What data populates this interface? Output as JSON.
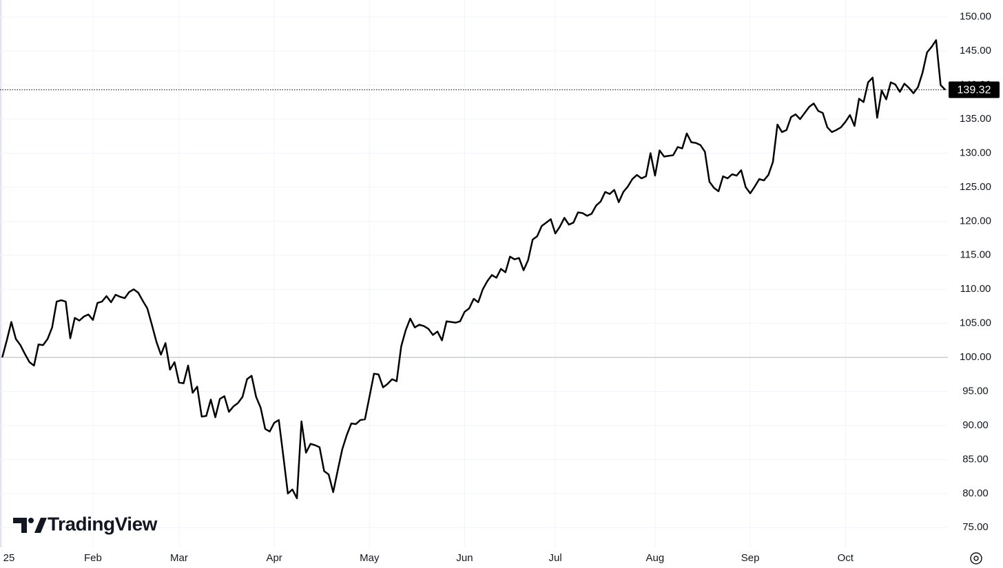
{
  "chart_data": {
    "type": "line",
    "watermark": "TradingView",
    "color": "#000000",
    "baseline": 100,
    "grid": true,
    "xlim": [
      -0.5,
      208.6
    ],
    "xticks": [
      {
        "value": 0,
        "label": "25"
      },
      {
        "value": 20,
        "label": "Feb"
      },
      {
        "value": 39,
        "label": "Mar"
      },
      {
        "value": 60,
        "label": "Apr"
      },
      {
        "value": 81,
        "label": "May"
      },
      {
        "value": 102,
        "label": "Jun"
      },
      {
        "value": 122,
        "label": "Jul"
      },
      {
        "value": 144,
        "label": "Aug"
      },
      {
        "value": 165,
        "label": "Sep"
      },
      {
        "value": 186,
        "label": "Oct"
      }
    ],
    "ylim": [
      72.6,
      152.5
    ],
    "yticks": [
      {
        "value": 75,
        "label": "75.00"
      },
      {
        "value": 80,
        "label": "80.00"
      },
      {
        "value": 85,
        "label": "85.00"
      },
      {
        "value": 90,
        "label": "90.00"
      },
      {
        "value": 95,
        "label": "95.00"
      },
      {
        "value": 100,
        "label": "100.00"
      },
      {
        "value": 105,
        "label": "105.00"
      },
      {
        "value": 110,
        "label": "110.00"
      },
      {
        "value": 115,
        "label": "115.00"
      },
      {
        "value": 120,
        "label": "120.00"
      },
      {
        "value": 125,
        "label": "125.00"
      },
      {
        "value": 130,
        "label": "130.00"
      },
      {
        "value": 135,
        "label": "135.00"
      },
      {
        "value": 140,
        "label": "140.00"
      },
      {
        "value": 145,
        "label": "145.00"
      },
      {
        "value": 150,
        "label": "150.00"
      }
    ],
    "values": [
      100,
      102.5,
      105.2,
      102.7,
      101.8,
      100.5,
      99.3,
      98.8,
      101.9,
      101.8,
      102.7,
      104.4,
      108.2,
      108.4,
      108.2,
      102.8,
      105.8,
      105.4,
      106.0,
      106.3,
      105.5,
      108.0,
      108.2,
      109.0,
      108.1,
      109.2,
      108.9,
      108.7,
      109.6,
      110.0,
      109.5,
      108.3,
      107.2,
      104.8,
      102.3,
      100.4,
      102.1,
      98.2,
      99.3,
      96.3,
      96.2,
      98.8,
      94.8,
      95.7,
      91.3,
      91.4,
      93.8,
      91.2,
      93.9,
      94.3,
      92.0,
      92.8,
      93.3,
      94.2,
      96.8,
      97.3,
      94.2,
      92.6,
      89.5,
      89.1,
      90.4,
      90.8,
      85.5,
      80.0,
      80.6,
      79.3,
      90.6,
      86.0,
      87.3,
      87.1,
      86.8,
      83.3,
      82.8,
      80.2,
      83.4,
      86.5,
      88.6,
      90.3,
      90.2,
      90.8,
      90.9,
      94.2,
      97.6,
      97.5,
      95.6,
      96.1,
      96.8,
      96.5,
      101.6,
      104.0,
      105.7,
      104.4,
      104.8,
      104.6,
      104.2,
      103.3,
      103.8,
      102.5,
      105.3,
      105.2,
      105.1,
      105.3,
      106.7,
      107.2,
      108.6,
      108.1,
      110.0,
      111.2,
      112.1,
      111.7,
      113.0,
      112.5,
      114.8,
      114.4,
      114.6,
      112.8,
      114.3,
      117.3,
      117.8,
      119.3,
      119.8,
      120.3,
      118.2,
      119.2,
      120.5,
      119.5,
      119.8,
      121.3,
      121.2,
      120.8,
      121.1,
      122.3,
      122.9,
      124.3,
      124.0,
      124.6,
      122.8,
      124.3,
      125.1,
      126.2,
      126.8,
      126.3,
      126.6,
      130.0,
      126.7,
      130.4,
      129.5,
      129.6,
      129.7,
      130.9,
      130.7,
      132.9,
      131.6,
      131.5,
      131.2,
      130.2,
      125.8,
      124.9,
      124.4,
      126.6,
      126.3,
      126.9,
      126.7,
      127.5,
      125.0,
      124.1,
      125.1,
      126.2,
      126.0,
      126.8,
      128.7,
      134.2,
      133.1,
      133.4,
      135.3,
      135.7,
      135.0,
      135.9,
      136.8,
      137.3,
      136.2,
      135.9,
      133.8,
      133.1,
      133.4,
      133.8,
      134.6,
      135.6,
      134.0,
      138.0,
      137.5,
      140.4,
      141.1,
      135.2,
      139.2,
      137.9,
      140.4,
      140.1,
      139.0,
      140.2,
      139.6,
      138.8,
      139.7,
      141.8,
      144.8,
      145.6,
      146.6,
      140.0,
      139.32
    ]
  }
}
